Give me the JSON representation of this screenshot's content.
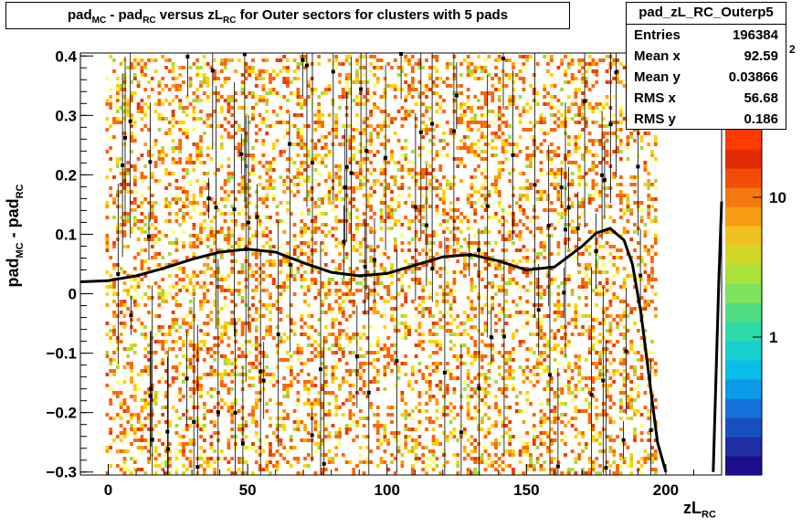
{
  "title": {
    "main1": "pad",
    "sub1": "MC",
    "main2": " - pad",
    "sub2": "RC",
    "main3": " versus zL",
    "sub3": "RC",
    "main4": " for Outer sectors for clusters with 5 pads"
  },
  "stats": {
    "name": "pad_zL_RC_Outerp5",
    "rows": [
      {
        "label": "Entries",
        "value": "196384"
      },
      {
        "label": "Mean x",
        "value": "92.59"
      },
      {
        "label": "Mean y",
        "value": "0.03866"
      },
      {
        "label": "RMS x",
        "value": "56.68"
      },
      {
        "label": "RMS y",
        "value": "0.186"
      }
    ]
  },
  "axes": {
    "xlabel_main": "zL",
    "xlabel_sub": "RC",
    "ylabel_main1": "pad",
    "ylabel_sub1": "MC",
    "ylabel_main2": " - pad",
    "ylabel_sub2": "RC"
  },
  "palette_labels": {
    "one": "1",
    "ten": "10",
    "hundred_exp": "2"
  },
  "chart_data": {
    "type": "heatmap",
    "xlim": [
      -10,
      220
    ],
    "ylim": [
      -0.305,
      0.405
    ],
    "x_ticks": [
      0,
      50,
      100,
      150,
      200
    ],
    "y_ticks": [
      -0.3,
      -0.2,
      -0.1,
      0,
      0.1,
      0.2,
      0.3,
      0.4
    ],
    "x_tick_labels": [
      "0",
      "50",
      "100",
      "150",
      "200"
    ],
    "y_tick_labels": [
      "−0.3",
      "−0.2",
      "−0.1",
      "0",
      "0.1",
      "0.2",
      "0.3",
      "0.4"
    ],
    "z_scale": "log",
    "profile_curve": {
      "x": [
        -10,
        0,
        10,
        20,
        30,
        40,
        50,
        60,
        70,
        80,
        90,
        100,
        110,
        120,
        130,
        140,
        150,
        160,
        170,
        175,
        180,
        185,
        188,
        191,
        194,
        197,
        200
      ],
      "y": [
        0.02,
        0.022,
        0.03,
        0.043,
        0.058,
        0.07,
        0.075,
        0.07,
        0.052,
        0.036,
        0.03,
        0.034,
        0.048,
        0.062,
        0.066,
        0.055,
        0.04,
        0.045,
        0.08,
        0.102,
        0.11,
        0.09,
        0.05,
        -0.03,
        -0.14,
        -0.25,
        -0.3
      ]
    },
    "right_curve": {
      "x": [
        217,
        219,
        220
      ],
      "y": [
        -0.3,
        0.02,
        0.155
      ]
    }
  },
  "colors": {
    "frame": "#000000",
    "curve": "#000000"
  }
}
